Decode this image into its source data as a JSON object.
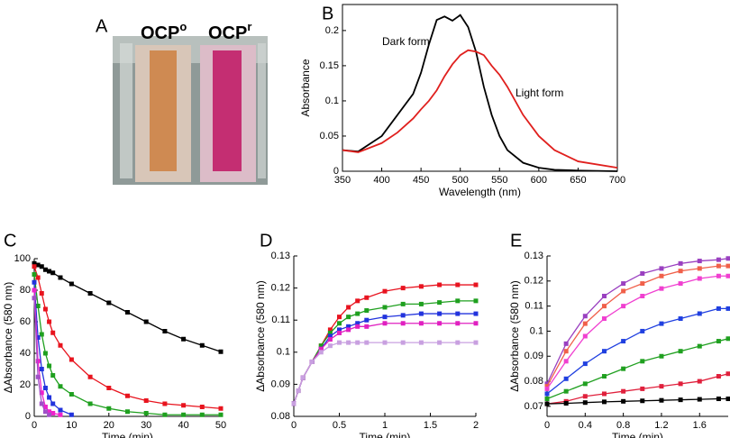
{
  "photo": {
    "label": "A",
    "captions": [
      {
        "text": "OCP",
        "sup": "o"
      },
      {
        "text": "OCP",
        "sup": "r"
      }
    ]
  },
  "chart_data": [
    {
      "type": "line",
      "label": "B",
      "xlabel": "Wavelength (nm)",
      "ylabel": "Absorbance",
      "markers": false,
      "x": [
        350,
        370,
        400,
        420,
        440,
        450,
        460,
        470,
        480,
        490,
        500,
        510,
        520,
        530,
        540,
        550,
        560,
        580,
        600,
        620,
        650,
        700
      ],
      "series": [
        {
          "color": "#000000",
          "values": [
            0.03,
            0.028,
            0.05,
            0.08,
            0.11,
            0.14,
            0.18,
            0.215,
            0.22,
            0.214,
            0.222,
            0.205,
            0.17,
            0.12,
            0.08,
            0.05,
            0.03,
            0.012,
            0.005,
            0.002,
            0.001,
            0
          ]
        },
        {
          "color": "#e0201e",
          "values": [
            0.03,
            0.027,
            0.04,
            0.055,
            0.075,
            0.088,
            0.1,
            0.115,
            0.135,
            0.152,
            0.165,
            0.172,
            0.17,
            0.165,
            0.15,
            0.137,
            0.12,
            0.08,
            0.05,
            0.03,
            0.014,
            0.005
          ]
        }
      ],
      "annotations": [
        {
          "text": "Dark form",
          "color": "#000000"
        },
        {
          "text": "Light form",
          "color": "#e0201e"
        }
      ],
      "xlim": [
        350,
        700
      ],
      "xticks": [
        350,
        400,
        450,
        500,
        550,
        600,
        650,
        700
      ],
      "ylim": [
        0,
        0.237
      ],
      "yticks": [
        0,
        0.05,
        0.1,
        0.15,
        0.2
      ]
    },
    {
      "type": "line",
      "label": "C",
      "xlabel": "Time (min)",
      "ylabel": "ΔAbsorbance (580 nm)",
      "markers": true,
      "x": [
        0,
        1,
        2,
        3,
        4,
        5,
        7,
        10,
        15,
        20,
        25,
        30,
        35,
        40,
        45,
        50
      ],
      "series": [
        {
          "color": "#000000",
          "values": [
            97,
            96,
            95,
            93,
            92,
            91,
            88,
            84,
            78,
            72,
            66,
            60,
            54,
            49,
            45,
            41
          ]
        },
        {
          "color": "#e8141e",
          "values": [
            95,
            88,
            78,
            68,
            60,
            53,
            45,
            36,
            25,
            18,
            13,
            10,
            8,
            7,
            6,
            5
          ]
        },
        {
          "color": "#1fa01f",
          "values": [
            90,
            70,
            52,
            40,
            32,
            26,
            19,
            14,
            8,
            5,
            3,
            2,
            1,
            1,
            1,
            1
          ]
        },
        {
          "color": "#2233dd",
          "values": [
            85,
            50,
            30,
            18,
            12,
            8,
            4,
            1,
            null,
            null,
            null,
            null,
            null,
            null,
            null,
            null
          ]
        },
        {
          "color": "#ee22cc",
          "values": [
            80,
            35,
            15,
            6,
            3,
            2,
            1,
            null,
            null,
            null,
            null,
            null,
            null,
            null,
            null,
            null
          ]
        },
        {
          "color": "#a050c8",
          "values": [
            75,
            25,
            8,
            3,
            1,
            null,
            null,
            null,
            null,
            null,
            null,
            null,
            null,
            null,
            null,
            null
          ]
        }
      ],
      "xlim": [
        0,
        50
      ],
      "xticks": [
        0,
        10,
        20,
        30,
        40,
        50
      ],
      "ylim": [
        0,
        100
      ],
      "yticks": [
        0,
        20,
        40,
        60,
        80,
        100
      ]
    },
    {
      "type": "line",
      "label": "D",
      "xlabel": "Time (min)",
      "ylabel": "ΔAbsorbance (580 nm)",
      "markers": true,
      "x": [
        0,
        0.05,
        0.1,
        0.2,
        0.3,
        0.4,
        0.5,
        0.6,
        0.7,
        0.8,
        1,
        1.2,
        1.4,
        1.6,
        1.8,
        2
      ],
      "series": [
        {
          "color": "#e81420",
          "values": [
            0.084,
            0.088,
            0.092,
            0.097,
            0.102,
            0.107,
            0.111,
            0.114,
            0.116,
            0.117,
            0.119,
            0.12,
            0.1205,
            0.121,
            0.121,
            0.121
          ]
        },
        {
          "color": "#1fa01f",
          "values": [
            0.084,
            0.088,
            0.092,
            0.097,
            0.102,
            0.106,
            0.109,
            0.111,
            0.112,
            0.113,
            0.114,
            0.115,
            0.115,
            0.1155,
            0.116,
            0.116
          ]
        },
        {
          "color": "#2233dd",
          "values": [
            0.084,
            0.088,
            0.092,
            0.097,
            0.101,
            0.105,
            0.107,
            0.108,
            0.109,
            0.11,
            0.111,
            0.1115,
            0.112,
            0.112,
            0.112,
            0.112
          ]
        },
        {
          "color": "#e020c0",
          "values": [
            0.084,
            0.088,
            0.092,
            0.097,
            0.101,
            0.104,
            0.106,
            0.107,
            0.108,
            0.108,
            0.109,
            0.109,
            0.109,
            0.109,
            0.109,
            0.109
          ]
        },
        {
          "color": "#c8a0e0",
          "values": [
            0.084,
            0.088,
            0.092,
            0.097,
            0.1,
            0.102,
            0.103,
            0.103,
            0.103,
            0.103,
            0.103,
            0.103,
            0.103,
            0.103,
            0.103,
            0.103
          ]
        }
      ],
      "xlim": [
        0,
        2
      ],
      "xticks": [
        0,
        0.5,
        1,
        1.5,
        2
      ],
      "ylim": [
        0.08,
        0.13
      ],
      "yticks": [
        0.08,
        0.09,
        0.1,
        0.11,
        0.12,
        0.13
      ]
    },
    {
      "type": "line",
      "label": "E",
      "xlabel": "Time (min)",
      "ylabel": "ΔAbsorbance (580 nm)",
      "markers": true,
      "x": [
        0,
        0.2,
        0.4,
        0.6,
        0.8,
        1,
        1.2,
        1.4,
        1.6,
        1.8,
        1.9
      ],
      "series": [
        {
          "color": "#9a40c0",
          "values": [
            0.079,
            0.095,
            0.106,
            0.114,
            0.119,
            0.123,
            0.125,
            0.127,
            0.128,
            0.1285,
            0.129
          ]
        },
        {
          "color": "#f0604a",
          "values": [
            0.078,
            0.092,
            0.103,
            0.11,
            0.116,
            0.119,
            0.122,
            0.124,
            0.125,
            0.126,
            0.126
          ]
        },
        {
          "color": "#f040d0",
          "values": [
            0.077,
            0.088,
            0.098,
            0.105,
            0.11,
            0.114,
            0.117,
            0.119,
            0.121,
            0.122,
            0.122
          ]
        },
        {
          "color": "#2040e0",
          "values": [
            0.075,
            0.081,
            0.087,
            0.092,
            0.096,
            0.1,
            0.103,
            0.105,
            0.107,
            0.109,
            0.109
          ]
        },
        {
          "color": "#20a020",
          "values": [
            0.073,
            0.076,
            0.079,
            0.082,
            0.085,
            0.088,
            0.09,
            0.092,
            0.094,
            0.096,
            0.097
          ]
        },
        {
          "color": "#e0203c",
          "values": [
            0.071,
            0.072,
            0.074,
            0.075,
            0.076,
            0.077,
            0.078,
            0.079,
            0.08,
            0.082,
            0.083
          ]
        },
        {
          "color": "#000000",
          "values": [
            0.071,
            0.0712,
            0.0715,
            0.0718,
            0.072,
            0.0722,
            0.0724,
            0.0726,
            0.0728,
            0.073,
            0.073
          ]
        }
      ],
      "xlim": [
        0,
        1.9
      ],
      "xticks": [
        0,
        0.4,
        0.8,
        1.2,
        1.6
      ],
      "ylim": [
        0.066,
        0.13
      ],
      "yticks": [
        0.07,
        0.08,
        0.09,
        0.1,
        0.11,
        0.12,
        0.13
      ]
    }
  ]
}
